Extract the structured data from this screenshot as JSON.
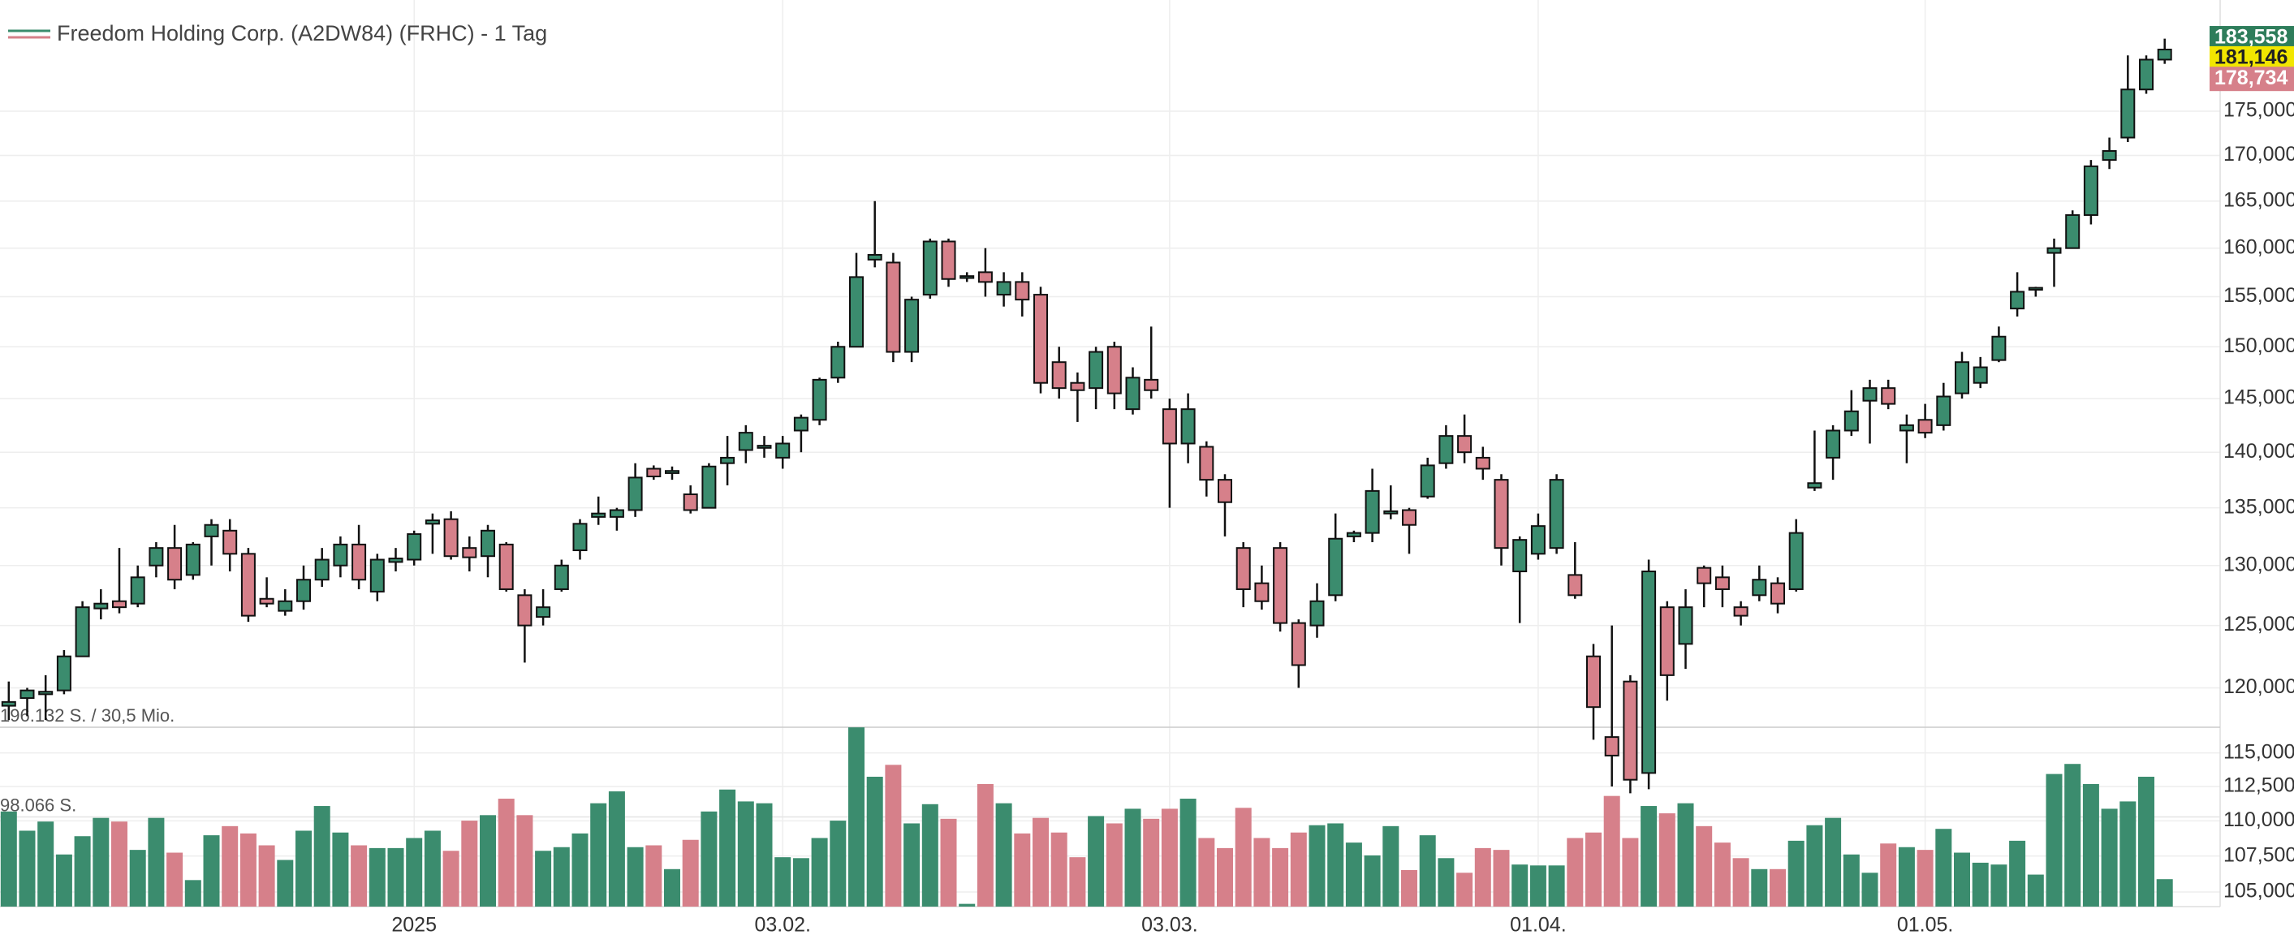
{
  "chart_data": {
    "type": "candlestick",
    "title": "Freedom Holding Corp. (A2DW84) (FRHC) - 1 Tag",
    "log_scale": true,
    "grid": true,
    "up_color": "#3b8c6e",
    "down_color": "#d6808a",
    "categories": [
      null,
      null,
      null,
      null,
      null,
      null,
      null,
      null,
      null,
      null,
      null,
      null,
      null,
      null,
      null,
      null,
      null,
      null,
      null,
      null,
      null,
      null,
      "2025",
      null,
      null,
      null,
      null,
      null,
      null,
      null,
      null,
      null,
      null,
      null,
      null,
      null,
      null,
      null,
      null,
      null,
      null,
      null,
      "03.02.",
      null,
      null,
      null,
      null,
      null,
      null,
      null,
      null,
      null,
      null,
      null,
      null,
      null,
      null,
      null,
      null,
      null,
      null,
      null,
      null,
      "03.03.",
      null,
      null,
      null,
      null,
      null,
      null,
      null,
      null,
      null,
      null,
      null,
      null,
      null,
      null,
      null,
      null,
      null,
      null,
      null,
      "01.04.",
      null,
      null,
      null,
      null,
      null,
      null,
      null,
      null,
      null,
      null,
      null,
      null,
      null,
      null,
      null,
      null,
      null,
      null,
      null,
      null,
      "01.05.",
      null,
      null,
      null,
      null,
      null,
      null,
      null,
      null,
      null,
      null,
      null,
      null,
      null
    ],
    "open": [
      118600,
      119200,
      119500,
      119800,
      122500,
      126400,
      127000,
      126800,
      130000,
      131500,
      129200,
      132500,
      133000,
      131000,
      127200,
      126200,
      127000,
      128800,
      130000,
      131800,
      127800,
      130300,
      130500,
      133600,
      134000,
      131500,
      130800,
      131800,
      127500,
      125700,
      128000,
      131300,
      134200,
      134200,
      134800,
      138500,
      138100,
      136200,
      135000,
      139000,
      140200,
      140400,
      139500,
      142000,
      143000,
      147000,
      150000,
      158800,
      158500,
      149500,
      155200,
      160700,
      156900,
      157500,
      155200,
      156500,
      155200,
      148500,
      146500,
      146000,
      150000,
      144000,
      146800,
      144000,
      140800,
      140500,
      137500,
      131500,
      128500,
      131500,
      125200,
      125000,
      127500,
      132500,
      132800,
      134500,
      134800,
      136000,
      139000,
      141500,
      139500,
      137500,
      129500,
      131000,
      131500,
      129200,
      122500,
      116200,
      120500,
      113500,
      126500,
      123500,
      129800,
      129000,
      126500,
      127500,
      128500,
      128000,
      136800,
      139500,
      142000,
      144800,
      146000,
      142000,
      143000,
      142500,
      145500,
      146500,
      148700,
      153800,
      155700,
      159500,
      160000,
      163500,
      169500,
      172000,
      177500,
      181000
    ],
    "high": [
      120500,
      120000,
      121000,
      123000,
      127000,
      128000,
      131500,
      130000,
      132000,
      133500,
      132000,
      134000,
      134000,
      131500,
      129000,
      128000,
      130000,
      131500,
      132500,
      133500,
      131000,
      131500,
      133000,
      134500,
      134700,
      132500,
      133500,
      132000,
      128000,
      128000,
      130500,
      134000,
      136000,
      135000,
      139000,
      138800,
      138700,
      137000,
      139000,
      141500,
      142500,
      141500,
      141500,
      143500,
      147000,
      150500,
      159500,
      165000,
      159500,
      155000,
      161000,
      161000,
      157500,
      160000,
      157500,
      157500,
      156000,
      150000,
      147500,
      150000,
      150500,
      148000,
      152000,
      145000,
      145500,
      141000,
      138000,
      132000,
      130000,
      132000,
      125500,
      128500,
      134500,
      133000,
      138500,
      137000,
      135000,
      139500,
      142500,
      143500,
      140500,
      138000,
      132500,
      134500,
      138000,
      132000,
      123500,
      125000,
      121000,
      130500,
      127000,
      128000,
      130000,
      130000,
      127000,
      130000,
      129000,
      134000,
      142000,
      142500,
      145800,
      146800,
      146800,
      143500,
      144500,
      146500,
      149500,
      149000,
      152000,
      157500,
      156000,
      161000,
      164000,
      169500,
      172000,
      181500,
      181500,
      183500
    ],
    "low": [
      117500,
      117800,
      117500,
      119500,
      122500,
      125500,
      126000,
      126500,
      129000,
      128000,
      128800,
      130000,
      129500,
      125300,
      126500,
      125800,
      126300,
      128200,
      129000,
      128000,
      127000,
      129500,
      130000,
      131000,
      130500,
      129500,
      129000,
      127800,
      122000,
      125000,
      127800,
      130500,
      133500,
      133000,
      134200,
      137500,
      137500,
      134500,
      135000,
      137000,
      139000,
      139500,
      138500,
      140000,
      142500,
      146500,
      150000,
      158000,
      148500,
      148500,
      154800,
      156000,
      156500,
      155000,
      154000,
      153000,
      145500,
      145000,
      142800,
      144000,
      144000,
      143500,
      145000,
      135000,
      139000,
      136000,
      132500,
      126500,
      126300,
      124500,
      120000,
      124000,
      127000,
      132000,
      132000,
      134000,
      131000,
      135800,
      138500,
      139000,
      137500,
      130000,
      125200,
      130500,
      131000,
      127200,
      116000,
      112500,
      112000,
      112300,
      119000,
      121500,
      126500,
      126500,
      125000,
      127000,
      126000,
      127800,
      136500,
      137500,
      141500,
      140800,
      144000,
      139000,
      141300,
      142000,
      145000,
      146000,
      148500,
      153000,
      155000,
      156000,
      160000,
      162500,
      168500,
      171500,
      177000,
      180500
    ],
    "close": [
      118900,
      119800,
      119700,
      122500,
      126500,
      126800,
      126500,
      129000,
      131500,
      128800,
      131800,
      133500,
      131000,
      125800,
      126800,
      127000,
      128800,
      130500,
      131800,
      128800,
      130500,
      130600,
      132700,
      133900,
      130800,
      130700,
      133000,
      128000,
      125000,
      126500,
      130000,
      133600,
      134500,
      134800,
      137700,
      137800,
      138300,
      134800,
      138700,
      139500,
      141800,
      140600,
      140800,
      143200,
      146800,
      150000,
      157000,
      159300,
      149500,
      154700,
      160700,
      156800,
      157100,
      156500,
      156500,
      154700,
      146500,
      146000,
      145800,
      149500,
      145500,
      147000,
      145800,
      140800,
      144000,
      137500,
      135500,
      128000,
      127000,
      125200,
      121800,
      127000,
      132300,
      132800,
      136500,
      134700,
      133500,
      138800,
      141500,
      140000,
      138500,
      131500,
      132200,
      133400,
      137500,
      127500,
      118500,
      114800,
      113000,
      129500,
      121000,
      126500,
      128500,
      128000,
      125800,
      128800,
      126800,
      132800,
      137200,
      142000,
      143800,
      146000,
      144500,
      142500,
      141800,
      145200,
      148500,
      148000,
      151000,
      155500,
      155900,
      160000,
      163500,
      168800,
      170500,
      177500,
      181000,
      182200
    ],
    "volume": [
      104000,
      83000,
      93000,
      57000,
      77000,
      97000,
      93000,
      62000,
      97000,
      59000,
      29000,
      78000,
      88000,
      80000,
      67000,
      51000,
      83000,
      110000,
      81000,
      67000,
      64000,
      64000,
      75000,
      83000,
      61000,
      94000,
      100000,
      118000,
      100000,
      61000,
      65000,
      80000,
      113000,
      126000,
      65000,
      67000,
      41000,
      73000,
      104000,
      128000,
      115000,
      113000,
      54000,
      53000,
      75000,
      94000,
      196000,
      142000,
      155000,
      91000,
      112000,
      96000,
      3000,
      134000,
      113000,
      80000,
      97000,
      81000,
      54000,
      99000,
      91000,
      107000,
      96000,
      107000,
      118000,
      75000,
      64000,
      108000,
      75000,
      64000,
      81000,
      89000,
      91000,
      70000,
      56000,
      88000,
      40000,
      78000,
      53000,
      37000,
      64000,
      62000,
      46000,
      45000,
      45000,
      75000,
      81000,
      121000,
      75000,
      110000,
      102000,
      113000,
      88000,
      70000,
      53000,
      41000,
      41000,
      72000,
      89000,
      97000,
      57000,
      37000,
      69000,
      65000,
      62000,
      85000,
      59000,
      48000,
      46000,
      72000,
      35000,
      145000,
      156000,
      134000,
      107000,
      115000,
      142000,
      30000
    ],
    "ylim": [
      104000,
      188200
    ],
    "yticks": [
      {
        "value": 105000,
        "label": "105,000"
      },
      {
        "value": 107500,
        "label": "107,500"
      },
      {
        "value": 110000,
        "label": "110,000"
      },
      {
        "value": 112500,
        "label": "112,500"
      },
      {
        "value": 115000,
        "label": "115,000"
      },
      {
        "value": 120000,
        "label": "120,000"
      },
      {
        "value": 125000,
        "label": "125,000"
      },
      {
        "value": 130000,
        "label": "130,000"
      },
      {
        "value": 135000,
        "label": "135,000"
      },
      {
        "value": 140000,
        "label": "140,000"
      },
      {
        "value": 145000,
        "label": "145,000"
      },
      {
        "value": 150000,
        "label": "150,000"
      },
      {
        "value": 155000,
        "label": "155,000"
      },
      {
        "value": 160000,
        "label": "160,000"
      },
      {
        "value": 165000,
        "label": "165,000"
      },
      {
        "value": 170000,
        "label": "170,000"
      },
      {
        "value": 175000,
        "label": "175,000"
      }
    ],
    "price_labels": [
      {
        "value": 183558,
        "label": "183,558",
        "color": "#2e7d5b"
      },
      {
        "value": 181146,
        "label": "181,146",
        "color": "#f2e600"
      },
      {
        "value": 178734,
        "label": "178,734",
        "color": "#d6808a"
      }
    ],
    "volume_lim": [
      0,
      196132
    ],
    "volume_ticks": [
      {
        "value": 196132,
        "label": "196.132 S. / 30,5 Mio."
      },
      {
        "value": 98066,
        "label": "98.066 S."
      }
    ]
  }
}
